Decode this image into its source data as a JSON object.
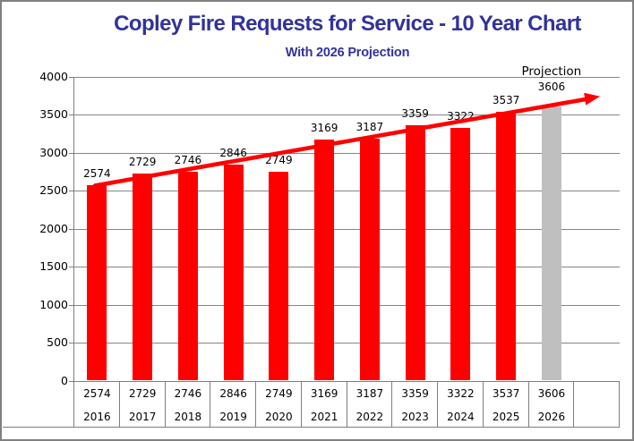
{
  "title": "Copley Fire Requests for Service - 10 Year Chart",
  "subtitle": "With 2026 Projection",
  "colors": {
    "title_text": "#32329B",
    "subtitle_text": "#32329B",
    "bar": "#FF0000",
    "projection_bar": "#BFBFBF",
    "trendline": "#FF0000",
    "gridline": "#858585",
    "axis": "#7F7F7F",
    "table_line": "#7F7F7F",
    "label_text": "#000000",
    "border": "#808080",
    "background": "#FFFFFF"
  },
  "chart_data": {
    "type": "bar",
    "title": "Copley Fire Requests for Service - 10 Year Chart",
    "subtitle": "With 2026 Projection",
    "categories": [
      "2016",
      "2017",
      "2018",
      "2019",
      "2020",
      "2021",
      "2022",
      "2023",
      "2024",
      "2025",
      "2026"
    ],
    "values": [
      2574,
      2729,
      2746,
      2846,
      2749,
      3169,
      3187,
      3359,
      3322,
      3537,
      3606
    ],
    "bar_value_labels": [
      "2574",
      "2729",
      "2746",
      "2846",
      "2749",
      "3169",
      "3187",
      "3359",
      "3322",
      "3537",
      "3606"
    ],
    "xlabel": "",
    "ylabel": "",
    "ylim": [
      0,
      4000
    ],
    "ytick_interval": 500,
    "yticks": [
      "4000",
      "3500",
      "3000",
      "2500",
      "2000",
      "1500",
      "1000",
      "500",
      "0"
    ],
    "grid": true,
    "legend": false,
    "projection": {
      "index": 10,
      "label": "Projection",
      "value": 3606
    },
    "trendline": {
      "type": "linear",
      "arrow_end": true,
      "color": "#FF0000"
    },
    "data_table": {
      "values_row": [
        "2574",
        "2729",
        "2746",
        "2846",
        "2749",
        "3169",
        "3187",
        "3359",
        "3322",
        "3537",
        "3606",
        ""
      ],
      "years_row": [
        "2016",
        "2017",
        "2018",
        "2019",
        "2020",
        "2021",
        "2022",
        "2023",
        "2024",
        "2025",
        "2026",
        ""
      ]
    }
  }
}
